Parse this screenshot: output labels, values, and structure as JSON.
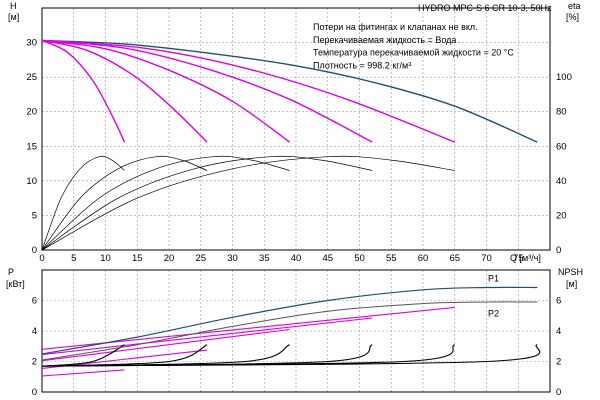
{
  "chart_data": [
    {
      "type": "line",
      "panel": "H",
      "title": "HYDRO MPC-S 6 CR 10-3, 50Hz",
      "notes": [
        "Потери на фитингах и клапанах не вкл.",
        "Перекачиваемая жидкость = Вода",
        "Температура перекачиваемой жидкости = 20 °C",
        "Плотность = 998.2 кг/м³"
      ],
      "xlabel": "Q [м³/ч]",
      "ylabel_left": [
        "H",
        "[м]"
      ],
      "ylabel_right": [
        "eta",
        "[%]"
      ],
      "xlim": [
        0,
        80
      ],
      "ylim_left": [
        0,
        35
      ],
      "ylim_right": [
        0,
        140
      ],
      "x_ticks": [
        0,
        5,
        10,
        15,
        20,
        25,
        30,
        35,
        40,
        45,
        50,
        55,
        60,
        65,
        70,
        75
      ],
      "y_ticks_left": [
        0,
        5,
        10,
        15,
        20,
        25,
        30
      ],
      "y_ticks_right": [
        0,
        20,
        40,
        60,
        80,
        100
      ],
      "grid": true,
      "colors": {
        "max_curve": "#1f4e79",
        "pump_curves": "#e000e0",
        "efficiency": "#000000"
      },
      "series": [
        {
          "kind": "max-head",
          "x": [
            0,
            13,
            26,
            39,
            52,
            65,
            78
          ],
          "values": [
            30.3,
            29.8,
            28.5,
            26.8,
            24.3,
            20.8,
            15.6
          ]
        },
        {
          "kind": "pump-1",
          "x": [
            0,
            4,
            8,
            11,
            13
          ],
          "values": [
            30.3,
            28.6,
            24.5,
            19.5,
            15.6
          ]
        },
        {
          "kind": "pump-2",
          "x": [
            0,
            7,
            14,
            20,
            26
          ],
          "values": [
            30.3,
            28.9,
            25.5,
            21.0,
            15.6
          ]
        },
        {
          "kind": "pump-3",
          "x": [
            0,
            10,
            20,
            30,
            39
          ],
          "values": [
            30.3,
            29.1,
            26.0,
            21.5,
            15.6
          ]
        },
        {
          "kind": "pump-4",
          "x": [
            0,
            13,
            26,
            39,
            52
          ],
          "values": [
            30.3,
            29.2,
            26.2,
            21.8,
            15.6
          ]
        },
        {
          "kind": "pump-5",
          "x": [
            0,
            16,
            32,
            48,
            65
          ],
          "values": [
            30.3,
            29.2,
            26.3,
            21.8,
            15.6
          ]
        },
        {
          "kind": "eta-1",
          "x": [
            0,
            3,
            6,
            9,
            11,
            13
          ],
          "values": [
            0,
            30,
            47,
            54,
            52,
            46
          ]
        },
        {
          "kind": "eta-2",
          "x": [
            0,
            6,
            12,
            18,
            22,
            26
          ],
          "values": [
            0,
            30,
            47,
            54,
            52,
            46
          ]
        },
        {
          "kind": "eta-3",
          "x": [
            0,
            9,
            18,
            27,
            33,
            39
          ],
          "values": [
            0,
            30,
            47,
            54,
            52,
            46
          ]
        },
        {
          "kind": "eta-4",
          "x": [
            0,
            12,
            24,
            36,
            44,
            52
          ],
          "values": [
            0,
            30,
            47,
            54,
            52,
            46
          ]
        },
        {
          "kind": "eta-5",
          "x": [
            0,
            15,
            30,
            45,
            55,
            65
          ],
          "values": [
            0,
            30,
            47,
            54,
            52,
            46
          ]
        }
      ]
    },
    {
      "type": "line",
      "panel": "P",
      "xlim": [
        0,
        80
      ],
      "ylabel_left": [
        "P",
        "[кВт]"
      ],
      "ylabel_right": [
        "NPSH",
        "[м]"
      ],
      "ylim_left": [
        0,
        8
      ],
      "ylim_right": [
        0,
        8
      ],
      "y_ticks_left": [
        0,
        2,
        4,
        6
      ],
      "y_ticks_right": [
        0,
        2,
        4,
        6
      ],
      "grid": true,
      "labels": [
        "P1",
        "P2"
      ],
      "series": [
        {
          "name": "P1",
          "x": [
            0,
            15,
            30,
            45,
            60,
            70,
            78
          ],
          "values": [
            2.5,
            3.6,
            4.9,
            6.0,
            6.7,
            6.85,
            6.85
          ]
        },
        {
          "name": "P2",
          "x": [
            0,
            15,
            30,
            45,
            60,
            70,
            78
          ],
          "values": [
            2.1,
            3.1,
            4.3,
            5.3,
            5.8,
            5.9,
            5.9
          ]
        },
        {
          "kind": "pump-power-1",
          "x": [
            0,
            13
          ],
          "values": [
            1.05,
            1.45
          ]
        },
        {
          "kind": "pump-power-2",
          "x": [
            0,
            26
          ],
          "values": [
            1.55,
            2.75
          ]
        },
        {
          "kind": "pump-power-3",
          "x": [
            0,
            39
          ],
          "values": [
            2.05,
            4.1
          ]
        },
        {
          "kind": "pump-power-4",
          "x": [
            0,
            52
          ],
          "values": [
            2.45,
            4.85
          ]
        },
        {
          "kind": "pump-power-5",
          "x": [
            0,
            65
          ],
          "values": [
            2.8,
            5.55
          ]
        },
        {
          "kind": "npsh-1",
          "x": [
            0,
            8,
            13
          ],
          "values": [
            1.7,
            2.0,
            3.1
          ]
        },
        {
          "kind": "npsh-2",
          "x": [
            0,
            20,
            26
          ],
          "values": [
            1.7,
            2.0,
            3.1
          ]
        },
        {
          "kind": "npsh-3",
          "x": [
            0,
            32,
            39
          ],
          "values": [
            1.7,
            2.0,
            3.1
          ]
        },
        {
          "kind": "npsh-4",
          "x": [
            0,
            45,
            52
          ],
          "values": [
            1.7,
            2.0,
            3.1
          ]
        },
        {
          "kind": "npsh-5",
          "x": [
            0,
            57,
            65
          ],
          "values": [
            1.7,
            2.0,
            3.1
          ]
        },
        {
          "kind": "npsh-6",
          "x": [
            0,
            70,
            78
          ],
          "values": [
            1.7,
            2.0,
            3.1
          ]
        }
      ]
    }
  ]
}
